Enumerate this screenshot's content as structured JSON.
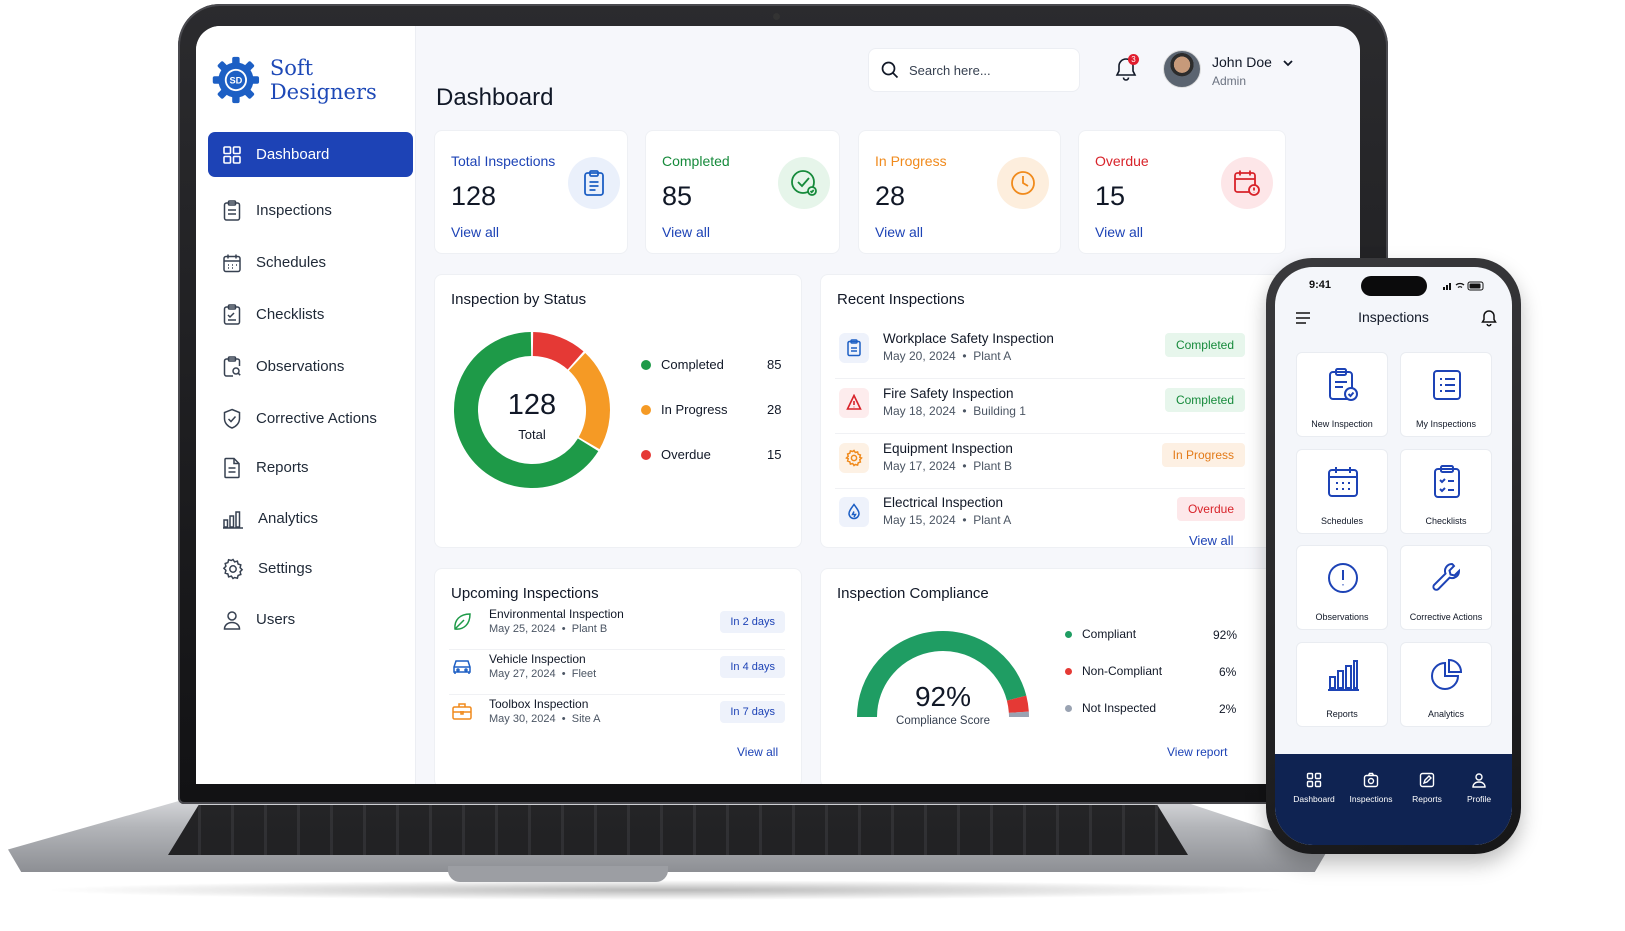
{
  "brand": {
    "name": "Soft Designers",
    "logo_text": "SD"
  },
  "sidebar": {
    "items": [
      {
        "label": "Dashboard",
        "icon": "grid-icon",
        "active": true
      },
      {
        "label": "Inspections",
        "icon": "clipboard-icon"
      },
      {
        "label": "Schedules",
        "icon": "calendar-icon"
      },
      {
        "label": "Checklists",
        "icon": "checklist-icon"
      },
      {
        "label": "Observations",
        "icon": "magnifier-clipboard-icon"
      },
      {
        "label": "Corrective Actions",
        "icon": "shield-check-icon"
      },
      {
        "label": "Reports",
        "icon": "report-icon"
      },
      {
        "label": "Analytics",
        "icon": "bar-chart-icon"
      },
      {
        "label": "Settings",
        "icon": "gear-icon"
      },
      {
        "label": "Users",
        "icon": "user-icon"
      }
    ]
  },
  "header": {
    "title": "Dashboard",
    "search_placeholder": "Search here...",
    "notifications": "3",
    "user": {
      "name": "John Doe",
      "role": "Admin"
    }
  },
  "stats": [
    {
      "label": "Total Inspections",
      "value": "128",
      "link": "View all",
      "color": "#1d43b6"
    },
    {
      "label": "Completed",
      "value": "85",
      "link": "View all",
      "color": "#168a3b"
    },
    {
      "label": "In Progress",
      "value": "28",
      "link": "View all",
      "color": "#f08a1c"
    },
    {
      "label": "Overdue",
      "value": "15",
      "link": "View all",
      "color": "#d8232a"
    }
  ],
  "status_card": {
    "title": "Inspection by Status",
    "center_value": "128",
    "center_label": "Total",
    "segments": [
      {
        "name": "Completed",
        "value": 85,
        "display": "85",
        "color": "#1e9a48"
      },
      {
        "name": "In Progress",
        "value": 28,
        "display": "28",
        "color": "#f59a25"
      },
      {
        "name": "Overdue",
        "value": 15,
        "display": "15",
        "color": "#e53935"
      }
    ]
  },
  "recent": {
    "title": "Recent Inspections",
    "link": "View all",
    "items": [
      {
        "name": "Workplace Safety Inspection",
        "date": "May 20, 2024",
        "place": "Plant A",
        "status": "Completed",
        "kind": "green",
        "icon": "clipboard-icon"
      },
      {
        "name": "Fire Safety Inspection",
        "date": "May 18, 2024",
        "place": "Building 1",
        "status": "Completed",
        "kind": "green",
        "icon": "fire-icon"
      },
      {
        "name": "Equipment Inspection",
        "date": "May 17, 2024",
        "place": "Plant B",
        "status": "In Progress",
        "kind": "orange",
        "icon": "cog-icon"
      },
      {
        "name": "Electrical Inspection",
        "date": "May 15, 2024",
        "place": "Plant A",
        "status": "Overdue",
        "kind": "red",
        "icon": "drop-icon"
      }
    ]
  },
  "upcoming": {
    "title": "Upcoming Inspections",
    "link": "View all",
    "items": [
      {
        "name": "Environmental Inspection",
        "date": "May 25, 2024",
        "place": "Plant B",
        "due": "In 2 days",
        "icon": "leaf-icon"
      },
      {
        "name": "Vehicle Inspection",
        "date": "May 27, 2024",
        "place": "Fleet",
        "due": "In 4 days",
        "icon": "car-icon"
      },
      {
        "name": "Toolbox Inspection",
        "date": "May 30, 2024",
        "place": "Site A",
        "due": "In 7 days",
        "icon": "toolbox-icon"
      }
    ]
  },
  "compliance": {
    "title": "Inspection Compliance",
    "score": "92%",
    "score_label": "Compliance Score",
    "link": "View report",
    "segments": [
      {
        "name": "Compliant",
        "value": 92,
        "display": "92%",
        "color": "#1f9d63"
      },
      {
        "name": "Non-Compliant",
        "value": 6,
        "display": "6%",
        "color": "#e53935"
      },
      {
        "name": "Not Inspected",
        "value": 2,
        "display": "2%",
        "color": "#9aa3b2"
      }
    ]
  },
  "phone": {
    "time": "9:41",
    "title": "Inspections",
    "tiles": [
      {
        "label": "New Inspection",
        "icon": "clipboard-check-icon"
      },
      {
        "label": "My Inspections",
        "icon": "list-icon"
      },
      {
        "label": "Schedules",
        "icon": "calendar-icon"
      },
      {
        "label": "Checklists",
        "icon": "checklist-icon"
      },
      {
        "label": "Observations",
        "icon": "alert-circle-icon"
      },
      {
        "label": "Corrective Actions",
        "icon": "wrench-icon"
      },
      {
        "label": "Reports",
        "icon": "bar-chart-icon"
      },
      {
        "label": "Analytics",
        "icon": "pie-chart-icon"
      }
    ],
    "tabs": [
      {
        "label": "Dashboard",
        "icon": "grid-icon"
      },
      {
        "label": "Inspections",
        "icon": "camera-icon"
      },
      {
        "label": "Reports",
        "icon": "edit-icon"
      },
      {
        "label": "Profile",
        "icon": "user-icon"
      }
    ]
  }
}
